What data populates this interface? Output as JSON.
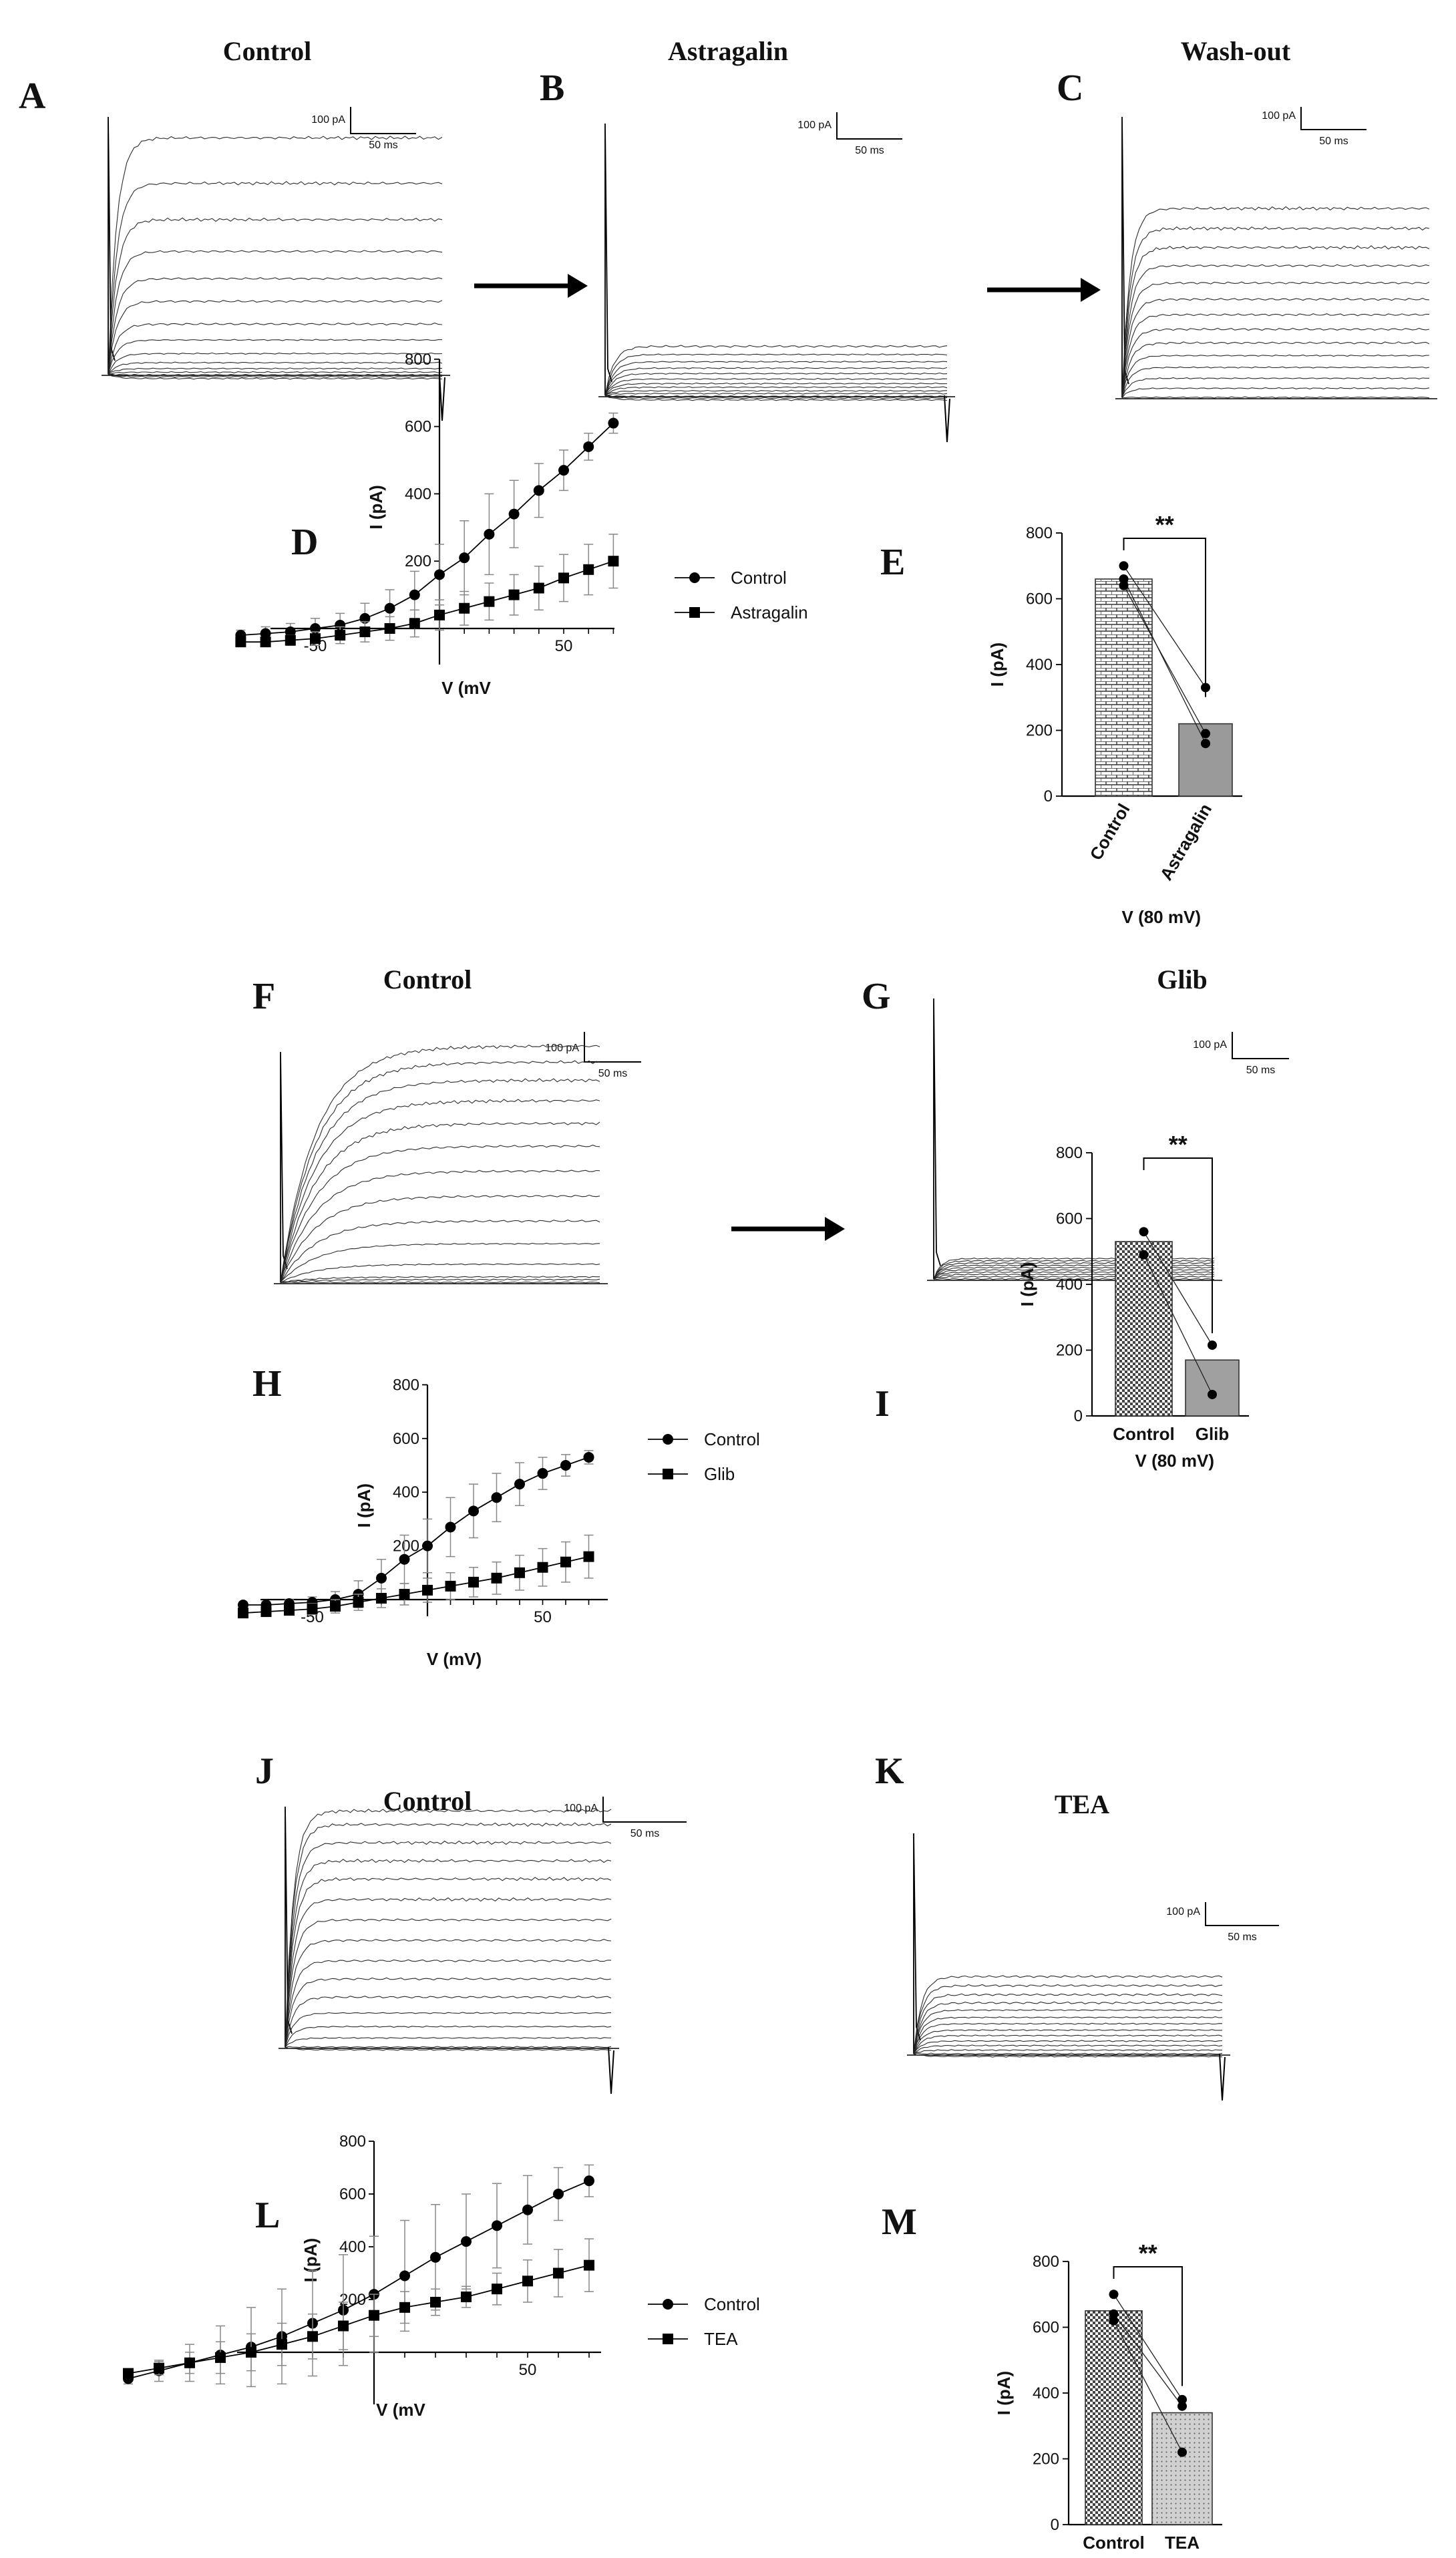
{
  "chart_data": [
    {
      "panel": "A",
      "type": "line",
      "title": "Control",
      "subtype": "current-traces",
      "scalebar": {
        "current_label": "100 pA",
        "time_label": "50 ms"
      },
      "trace_levels_pA": [
        -10,
        -6,
        -2,
        4,
        12,
        25,
        45,
        75,
        110,
        160,
        210,
        270,
        340,
        420,
        520
      ]
    },
    {
      "panel": "B",
      "type": "line",
      "title": "Astragalin",
      "subtype": "current-traces",
      "scalebar": {
        "current_label": "100 pA",
        "time_label": "50 ms"
      },
      "trace_levels_pA": [
        -10,
        -6,
        -2,
        4,
        10,
        18,
        26,
        36,
        48,
        60,
        74,
        90,
        108
      ]
    },
    {
      "panel": "C",
      "type": "line",
      "title": "Wash-out",
      "subtype": "current-traces",
      "scalebar": {
        "current_label": "100 pA",
        "time_label": "50 ms"
      },
      "trace_levels_pA": [
        0,
        20,
        42,
        66,
        92,
        120,
        150,
        182,
        216,
        252,
        290,
        330,
        372,
        416
      ]
    },
    {
      "panel": "D",
      "type": "line",
      "xlabel": "V (mV",
      "ylabel": "I (pA)",
      "ylim": [
        -50,
        800
      ],
      "xlim": [
        -80,
        80
      ],
      "xticks": [
        -50,
        50
      ],
      "yticks": [
        200,
        400,
        600,
        800
      ],
      "x": [
        -80,
        -70,
        -60,
        -50,
        -40,
        -30,
        -20,
        -10,
        0,
        10,
        20,
        30,
        40,
        50,
        60,
        70
      ],
      "series": [
        {
          "name": "Control",
          "marker": "circle",
          "values": [
            -20,
            -15,
            -10,
            0,
            10,
            30,
            60,
            100,
            160,
            210,
            280,
            340,
            410,
            470,
            540,
            610
          ],
          "errors": [
            15,
            20,
            25,
            30,
            35,
            45,
            55,
            70,
            90,
            110,
            120,
            100,
            80,
            60,
            40,
            30
          ]
        },
        {
          "name": "Astragalin",
          "marker": "square",
          "values": [
            -40,
            -40,
            -35,
            -30,
            -20,
            -10,
            0,
            15,
            40,
            60,
            80,
            100,
            120,
            150,
            175,
            200
          ],
          "errors": [
            10,
            12,
            15,
            20,
            25,
            30,
            35,
            40,
            45,
            50,
            55,
            60,
            65,
            70,
            75,
            80
          ]
        }
      ]
    },
    {
      "panel": "E",
      "type": "bar",
      "categories": [
        "Control",
        "Astragalin"
      ],
      "values": [
        660,
        220
      ],
      "ylabel": "I (pA)",
      "xlabel": "V (80 mV)",
      "ylim": [
        0,
        800
      ],
      "yticks": [
        0,
        200,
        400,
        600,
        800
      ],
      "points": [
        [
          700,
          640,
          660
        ],
        [
          330,
          190,
          160
        ]
      ],
      "significance": "**"
    },
    {
      "panel": "F",
      "type": "line",
      "title": "Control",
      "subtype": "current-traces",
      "scalebar": {
        "current_label": "100 pA",
        "time_label": "50 ms"
      },
      "trace_levels_pA": [
        0,
        6,
        12,
        40,
        85,
        135,
        190,
        245,
        300,
        350,
        400,
        445,
        485,
        520
      ]
    },
    {
      "panel": "G",
      "type": "line",
      "title": "Glib",
      "subtype": "current-traces",
      "scalebar": {
        "current_label": "100 pA",
        "time_label": "50 ms"
      },
      "trace_levels_pA": [
        0,
        5,
        10,
        15,
        20,
        25,
        30,
        35,
        40,
        45
      ]
    },
    {
      "panel": "H",
      "type": "line",
      "xlabel": "V (mV)",
      "ylabel": "I (pA)",
      "ylim": [
        -50,
        800
      ],
      "xlim": [
        -80,
        80
      ],
      "xticks": [
        -50,
        50
      ],
      "yticks": [
        200,
        400,
        600,
        800
      ],
      "x": [
        -80,
        -70,
        -60,
        -50,
        -40,
        -30,
        -20,
        -10,
        0,
        10,
        20,
        30,
        40,
        50,
        60,
        70
      ],
      "series": [
        {
          "name": "Control",
          "marker": "circle",
          "values": [
            -20,
            -20,
            -15,
            -10,
            0,
            20,
            80,
            150,
            200,
            270,
            330,
            380,
            430,
            470,
            500,
            530
          ],
          "errors": [
            10,
            12,
            15,
            20,
            30,
            50,
            70,
            90,
            100,
            110,
            100,
            90,
            80,
            60,
            40,
            25
          ]
        },
        {
          "name": "Glib",
          "marker": "square",
          "values": [
            -50,
            -45,
            -40,
            -35,
            -25,
            -10,
            5,
            20,
            35,
            50,
            65,
            80,
            100,
            120,
            140,
            160
          ],
          "errors": [
            10,
            12,
            15,
            20,
            25,
            30,
            35,
            40,
            45,
            50,
            55,
            60,
            65,
            70,
            75,
            80
          ]
        }
      ]
    },
    {
      "panel": "I",
      "type": "bar",
      "categories": [
        "Control",
        "Glib"
      ],
      "values": [
        530,
        170
      ],
      "ylabel": "I (pA)",
      "xlabel": "V (80 mV)",
      "ylim": [
        0,
        800
      ],
      "yticks": [
        0,
        200,
        400,
        600,
        800
      ],
      "points": [
        [
          560,
          490
        ],
        [
          215,
          65
        ]
      ],
      "significance": "**"
    },
    {
      "panel": "J",
      "type": "line",
      "title": "Control",
      "subtype": "current-traces",
      "scalebar": {
        "current_label": "100 pA",
        "time_label": "50 ms"
      },
      "trace_levels_pA": [
        -6,
        0,
        20,
        45,
        75,
        110,
        150,
        190,
        235,
        280,
        325,
        370,
        410,
        450,
        490,
        520
      ]
    },
    {
      "panel": "K",
      "type": "line",
      "title": "TEA",
      "subtype": "current-traces",
      "scalebar": {
        "current_label": "100 pA",
        "time_label": "50 ms"
      },
      "trace_levels_pA": [
        -6,
        0,
        8,
        18,
        28,
        40,
        52,
        66,
        80,
        96,
        112,
        130,
        150,
        170
      ]
    },
    {
      "panel": "L",
      "type": "line",
      "xlabel": "V (mV",
      "ylabel": "I (pA)",
      "ylim": [
        -100,
        800
      ],
      "xlim": [
        -80,
        80
      ],
      "xticks": [
        50
      ],
      "yticks": [
        200,
        400,
        600,
        800
      ],
      "x": [
        -80,
        -70,
        -60,
        -50,
        -40,
        -30,
        -20,
        -10,
        0,
        10,
        20,
        30,
        40,
        50,
        60,
        70
      ],
      "series": [
        {
          "name": "Control",
          "marker": "circle",
          "values": [
            -100,
            -70,
            -40,
            -10,
            20,
            60,
            110,
            160,
            220,
            290,
            360,
            420,
            480,
            540,
            600,
            650
          ],
          "errors": [
            20,
            40,
            70,
            110,
            150,
            180,
            200,
            210,
            220,
            210,
            200,
            180,
            160,
            130,
            100,
            60
          ]
        },
        {
          "name": "TEA",
          "marker": "square",
          "values": [
            -80,
            -60,
            -40,
            -20,
            0,
            30,
            60,
            100,
            140,
            170,
            190,
            210,
            240,
            270,
            300,
            330
          ],
          "errors": [
            15,
            25,
            40,
            60,
            70,
            80,
            85,
            90,
            80,
            60,
            50,
            40,
            60,
            80,
            90,
            100
          ]
        }
      ]
    },
    {
      "panel": "M",
      "type": "bar",
      "categories": [
        "Control",
        "TEA"
      ],
      "values": [
        650,
        340
      ],
      "ylabel": "I (pA)",
      "xlabel": "V (80 mV)",
      "ylim": [
        0,
        800
      ],
      "yticks": [
        0,
        200,
        400,
        600,
        800
      ],
      "points": [
        [
          700,
          640,
          620
        ],
        [
          380,
          360,
          220
        ]
      ],
      "significance": "**"
    }
  ],
  "panel_letters": [
    "A",
    "B",
    "C",
    "D",
    "E",
    "F",
    "G",
    "H",
    "I",
    "J",
    "K",
    "L",
    "M"
  ]
}
